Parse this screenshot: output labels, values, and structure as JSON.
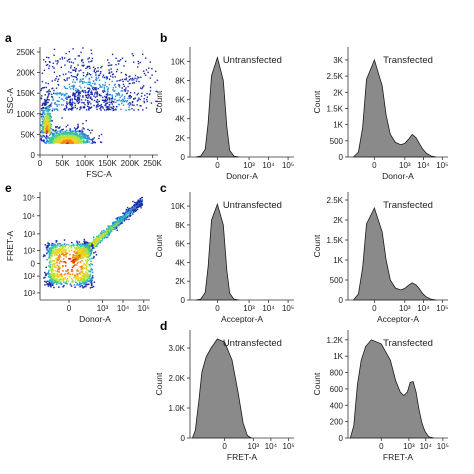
{
  "panel_letters": {
    "a": "a",
    "b": "b",
    "c": "c",
    "d": "d",
    "e": "e"
  },
  "chart_data": [
    {
      "id": "a",
      "type": "scatter",
      "style": "density",
      "xlabel": "FSC-A",
      "ylabel": "SSC-A",
      "xlim": [
        0,
        262144
      ],
      "ylim": [
        0,
        262144
      ],
      "xticks": [
        {
          "v": 0,
          "t": "0"
        },
        {
          "v": 50000,
          "t": "50K"
        },
        {
          "v": 100000,
          "t": "100K"
        },
        {
          "v": 150000,
          "t": "150K"
        },
        {
          "v": 200000,
          "t": "200K"
        },
        {
          "v": 250000,
          "t": "250K"
        }
      ],
      "yticks": [
        {
          "v": 0,
          "t": "0"
        },
        {
          "v": 50000,
          "t": "50K"
        },
        {
          "v": 100000,
          "t": "100K"
        },
        {
          "v": 150000,
          "t": "150K"
        },
        {
          "v": 200000,
          "t": "200K"
        },
        {
          "v": 250000,
          "t": "250K"
        }
      ],
      "clusters": [
        {
          "x": 60000,
          "y": 30000,
          "sx": 25000,
          "sy": 16000,
          "n": 900
        },
        {
          "x": 14000,
          "y": 55000,
          "sx": 6000,
          "sy": 35000,
          "n": 350
        },
        {
          "x": 110000,
          "y": 110000,
          "sx": 75000,
          "sy": 70000,
          "n": 900
        }
      ],
      "colors": [
        "#1a2aa8",
        "#2a8fd8",
        "#34c7a0",
        "#b3e23c",
        "#f2d21d",
        "#f08a18",
        "#e02a17"
      ]
    },
    {
      "id": "b1",
      "type": "area",
      "title": "Untransfected",
      "xlabel": "Donor-A",
      "ylabel": "Count",
      "xscale": "biexponential",
      "ylim": [
        0,
        11500
      ],
      "yticks": [
        {
          "v": 0,
          "t": "0"
        },
        {
          "v": 2000,
          "t": "2K"
        },
        {
          "v": 4000,
          "t": "4K"
        },
        {
          "v": 6000,
          "t": "6K"
        },
        {
          "v": 8000,
          "t": "8K"
        },
        {
          "v": 10000,
          "t": "10K"
        }
      ],
      "xticks": [
        {
          "v": 0,
          "t": "0"
        },
        {
          "v": 1000,
          "t": "10³"
        },
        {
          "v": 10000,
          "t": "10⁴"
        },
        {
          "v": 100000,
          "t": "10⁵"
        }
      ],
      "x": [
        -300,
        -150,
        -80,
        -50,
        -25,
        0,
        25,
        50,
        80,
        150,
        300
      ],
      "y": [
        0,
        100,
        800,
        3500,
        8500,
        10400,
        8000,
        3200,
        700,
        80,
        0
      ]
    },
    {
      "id": "b2",
      "type": "area",
      "title": "Transfected",
      "xlabel": "Donor-A",
      "ylabel": "Count",
      "xscale": "biexponential",
      "ylim": [
        0,
        3400
      ],
      "yticks": [
        {
          "v": 0,
          "t": "0"
        },
        {
          "v": 500,
          "t": "500"
        },
        {
          "v": 1000,
          "t": "1K"
        },
        {
          "v": 1500,
          "t": "1.5K"
        },
        {
          "v": 2000,
          "t": "2K"
        },
        {
          "v": 2500,
          "t": "2.5K"
        },
        {
          "v": 3000,
          "t": "3K"
        }
      ],
      "xticks": [
        {
          "v": 0,
          "t": "0"
        },
        {
          "v": 1000,
          "t": "10³"
        },
        {
          "v": 10000,
          "t": "10⁴"
        },
        {
          "v": 100000,
          "t": "10⁵"
        }
      ],
      "x": [
        -300,
        -150,
        -80,
        -40,
        0,
        40,
        80,
        150,
        300,
        600,
        1000,
        1600,
        2500,
        4000,
        6000,
        9000,
        14000,
        25000,
        50000
      ],
      "y": [
        0,
        150,
        900,
        2400,
        3000,
        2200,
        1300,
        700,
        450,
        380,
        420,
        550,
        700,
        600,
        420,
        250,
        120,
        30,
        0
      ]
    },
    {
      "id": "c1",
      "type": "area",
      "title": "Untransfected",
      "xlabel": "Acceptor-A",
      "ylabel": "Count",
      "xscale": "biexponential",
      "ylim": [
        0,
        11500
      ],
      "yticks": [
        {
          "v": 0,
          "t": "0"
        },
        {
          "v": 2000,
          "t": "2K"
        },
        {
          "v": 4000,
          "t": "4K"
        },
        {
          "v": 6000,
          "t": "6K"
        },
        {
          "v": 8000,
          "t": "8K"
        },
        {
          "v": 10000,
          "t": "10K"
        }
      ],
      "xticks": [
        {
          "v": 0,
          "t": "0"
        },
        {
          "v": 1000,
          "t": "10³"
        },
        {
          "v": 10000,
          "t": "10⁴"
        },
        {
          "v": 100000,
          "t": "10⁵"
        }
      ],
      "x": [
        -300,
        -150,
        -80,
        -50,
        -25,
        0,
        25,
        50,
        80,
        150,
        300
      ],
      "y": [
        0,
        100,
        800,
        3500,
        8500,
        10200,
        8000,
        3200,
        700,
        80,
        0
      ]
    },
    {
      "id": "c2",
      "type": "area",
      "title": "Transfected",
      "xlabel": "Acceptor-A",
      "ylabel": "Count",
      "xscale": "biexponential",
      "ylim": [
        0,
        2700
      ],
      "yticks": [
        {
          "v": 0,
          "t": "0"
        },
        {
          "v": 500,
          "t": "500"
        },
        {
          "v": 1000,
          "t": "1K"
        },
        {
          "v": 1500,
          "t": "1.5K"
        },
        {
          "v": 2000,
          "t": "2K"
        },
        {
          "v": 2500,
          "t": "2.5K"
        }
      ],
      "xticks": [
        {
          "v": 0,
          "t": "0"
        },
        {
          "v": 1000,
          "t": "10³"
        },
        {
          "v": 10000,
          "t": "10⁴"
        },
        {
          "v": 100000,
          "t": "10⁵"
        }
      ],
      "x": [
        -300,
        -150,
        -80,
        -40,
        0,
        40,
        80,
        150,
        300,
        600,
        1000,
        1600,
        2500,
        4000,
        6000,
        9000,
        14000,
        25000,
        50000
      ],
      "y": [
        0,
        150,
        800,
        1900,
        2300,
        1700,
        1000,
        500,
        300,
        250,
        290,
        370,
        430,
        380,
        280,
        160,
        80,
        20,
        0
      ]
    },
    {
      "id": "d1",
      "type": "area",
      "title": "Untransfected",
      "xlabel": "FRET-A",
      "ylabel": "Count",
      "xscale": "biexponential",
      "ylim": [
        0,
        3600
      ],
      "yticks": [
        {
          "v": 0,
          "t": "0"
        },
        {
          "v": 1000,
          "t": "1.0K"
        },
        {
          "v": 2000,
          "t": "2.0K"
        },
        {
          "v": 3000,
          "t": "3.0K"
        }
      ],
      "xticks": [
        {
          "v": 0,
          "t": "0"
        },
        {
          "v": 1000,
          "t": "10³"
        },
        {
          "v": 10000,
          "t": "10⁴"
        },
        {
          "v": 100000,
          "t": "10⁵"
        }
      ],
      "x": [
        -1600,
        -1100,
        -700,
        -450,
        -250,
        -120,
        -40,
        0,
        40,
        120,
        250,
        450,
        800
      ],
      "y": [
        0,
        250,
        1200,
        2200,
        2700,
        3000,
        3300,
        3200,
        2600,
        1500,
        500,
        80,
        0
      ]
    },
    {
      "id": "d2",
      "type": "area",
      "title": "Transfected",
      "xlabel": "FRET-A",
      "ylabel": "Count",
      "xscale": "biexponential",
      "ylim": [
        0,
        1320
      ],
      "yticks": [
        {
          "v": 0,
          "t": "0"
        },
        {
          "v": 200,
          "t": "200"
        },
        {
          "v": 400,
          "t": "400"
        },
        {
          "v": 600,
          "t": "600"
        },
        {
          "v": 800,
          "t": "800"
        },
        {
          "v": 1000,
          "t": "1K"
        },
        {
          "v": 1200,
          "t": "1.2K"
        }
      ],
      "xticks": [
        {
          "v": 0,
          "t": "0"
        },
        {
          "v": 1000,
          "t": "10³"
        },
        {
          "v": 10000,
          "t": "10⁴"
        },
        {
          "v": 100000,
          "t": "10⁵"
        }
      ],
      "x": [
        -1600,
        -1000,
        -600,
        -350,
        -180,
        -70,
        0,
        60,
        150,
        300,
        500,
        800,
        1200,
        1800,
        2700,
        4000,
        6000,
        9000,
        15000,
        30000
      ],
      "y": [
        0,
        150,
        650,
        950,
        1120,
        1200,
        1150,
        950,
        700,
        560,
        520,
        560,
        680,
        690,
        560,
        350,
        180,
        80,
        15,
        0
      ]
    },
    {
      "id": "e",
      "type": "scatter",
      "style": "density",
      "xlabel": "Donor-A",
      "ylabel": "FRET-A",
      "xscale": "biexponential",
      "yscale": "biexponential",
      "xticks": [
        {
          "v": 0,
          "t": "0"
        },
        {
          "v": 1000,
          "t": "10³"
        },
        {
          "v": 10000,
          "t": "10⁴"
        },
        {
          "v": 100000,
          "t": "10⁵"
        }
      ],
      "yticks": [
        {
          "v": -1000,
          "t": "10³"
        },
        {
          "v": -100,
          "t": "10²"
        },
        {
          "v": 0,
          "t": "0"
        },
        {
          "v": 100,
          "t": "10²"
        },
        {
          "v": 1000,
          "t": "10³"
        },
        {
          "v": 10000,
          "t": "10⁴"
        },
        {
          "v": 100000,
          "t": "10⁵"
        }
      ],
      "colors": [
        "#1a2aa8",
        "#2a8fd8",
        "#34c7a0",
        "#b3e23c",
        "#f2d21d",
        "#f08a18",
        "#e02a17"
      ]
    }
  ]
}
